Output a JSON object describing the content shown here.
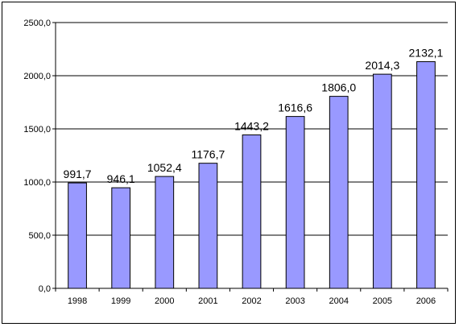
{
  "chart_data": {
    "type": "bar",
    "categories": [
      "1998",
      "1999",
      "2000",
      "2001",
      "2002",
      "2003",
      "2004",
      "2005",
      "2006"
    ],
    "values": [
      991.7,
      946.1,
      1052.4,
      1176.7,
      1443.2,
      1616.6,
      1806.0,
      2014.3,
      2132.1
    ],
    "data_labels": [
      "991,7",
      "946,1",
      "1052,4",
      "1176,7",
      "1443,2",
      "1616,6",
      "1806,0",
      "2014,3",
      "2132,1"
    ],
    "y_ticks": [
      0,
      500,
      1000,
      1500,
      2000,
      2500
    ],
    "y_tick_labels": [
      "0,0",
      "500,0",
      "1000,0",
      "1500,0",
      "2000,0",
      "2500,0"
    ],
    "ylim": [
      0,
      2500
    ],
    "grid": true,
    "legend": "none",
    "title": "",
    "xlabel": "",
    "ylabel": "",
    "colors": {
      "bar_fill": "#9999ff",
      "bar_stroke": "#000000",
      "grid": "#000000",
      "axis": "#000000"
    }
  }
}
